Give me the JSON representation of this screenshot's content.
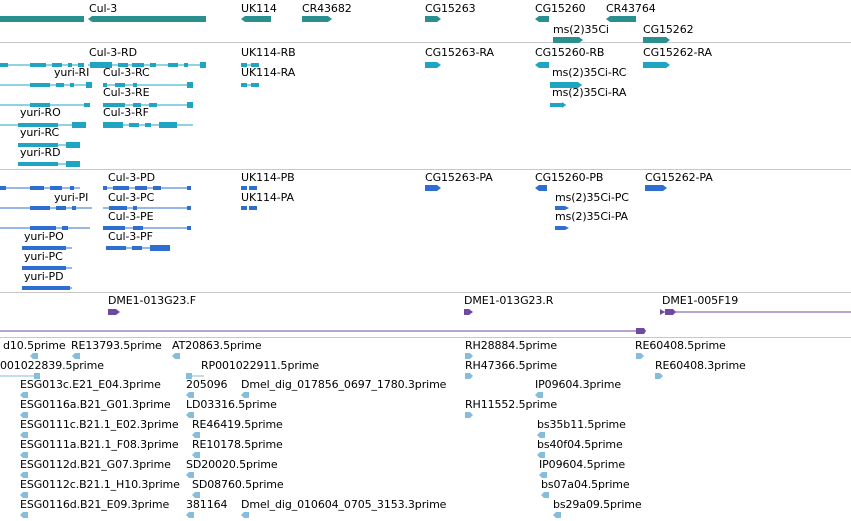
{
  "colors": {
    "gene": "#2a8f8f",
    "rna": "#1fa5c2",
    "protein": "#2d6fd0",
    "clone": "#6e4aa3",
    "est": "#86bddb",
    "separator": "#c8c8c8"
  },
  "tracks": {
    "genes": {
      "labels": [
        "Cul-3",
        "UK114",
        "CR43682",
        "CG15263",
        "CG15260",
        "CR43764",
        "ms(2)35Ci",
        "CG15262"
      ]
    },
    "transcripts": {
      "labels": [
        "Cul-3-RD",
        "yuri-RI",
        "Cul-3-RC",
        "Cul-3-RE",
        "Cul-3-RF",
        "yuri-RO",
        "yuri-RC",
        "yuri-RD",
        "UK114-RB",
        "UK114-RA",
        "CG15263-RA",
        "CG15260-RB",
        "ms(2)35Ci-RC",
        "ms(2)35Ci-RA",
        "CG15262-RA"
      ]
    },
    "proteins": {
      "labels": [
        "Cul-3-PD",
        "yuri-PI",
        "Cul-3-PC",
        "Cul-3-PE",
        "Cul-3-PF",
        "yuri-PO",
        "yuri-PC",
        "yuri-PD",
        "UK114-PB",
        "UK114-PA",
        "CG15263-PA",
        "CG15260-PB",
        "ms(2)35Ci-PC",
        "ms(2)35Ci-PA",
        "CG15262-PA"
      ]
    },
    "clones": {
      "labels": [
        "DME1-013G23.F",
        "DME1-013G23.R",
        "DME1-005F19"
      ]
    },
    "ests": {
      "labels": [
        "d10.5prime",
        "RE13793.5prime",
        "AT20863.5prime",
        "RH28884.5prime",
        "RE60408.5prime",
        "001022839.5prime",
        "RP001022911.5prime",
        "RH47366.5prime",
        "RE60408.3prime",
        "ESG013c.E21_E04.3prime",
        "205096",
        "Dmel_dig_017856_0697_1780.3prime",
        "IP09604.3prime",
        "ESG0116a.B21_G01.3prime",
        "LD03316.5prime",
        "RH11552.5prime",
        "ESG0111c.B21.1_E02.3prime",
        "RE46419.5prime",
        "bs35b11.5prime",
        "ESG0111a.B21.1_F08.3prime",
        "RE10178.5prime",
        "bs40f04.5prime",
        "ESG0112d.B21_G07.3prime",
        "SD20020.5prime",
        "IP09604.5prime",
        "ESG0112c.B21.1_H10.3prime",
        "SD08760.5prime",
        "bs07a04.5prime",
        "ESG0116d.B21_E09.3prime",
        "381164",
        "Dmel_dig_010604_0705_3153.3prime",
        "bs29a09.5prime"
      ]
    }
  }
}
